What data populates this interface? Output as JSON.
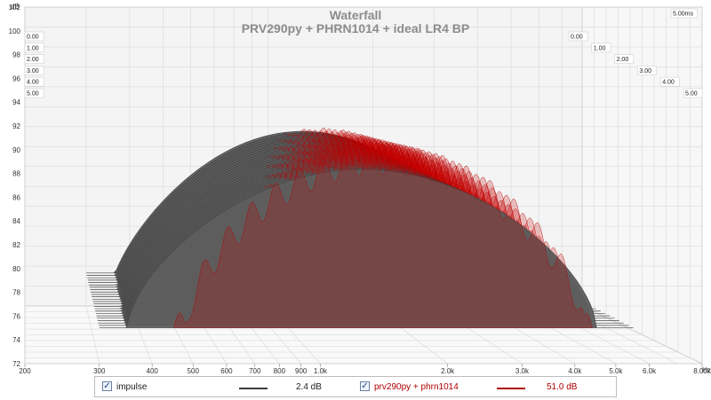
{
  "chart_data": {
    "type": "waterfall",
    "title": "Waterfall",
    "subtitle": "PRV290py + PHRN1014 + ideal LR4 BP",
    "y_axis": {
      "unit": "dB",
      "range": [
        72,
        102
      ],
      "ticks": [
        "72",
        "74",
        "76",
        "78",
        "80",
        "82",
        "84",
        "86",
        "88",
        "90",
        "92",
        "94",
        "96",
        "98",
        "100",
        "102"
      ]
    },
    "x_axis": {
      "unit": "Hz",
      "scale": "log",
      "range": [
        200,
        8000
      ],
      "ticks": [
        {
          "f": 200,
          "label": "200"
        },
        {
          "f": 300,
          "label": "300"
        },
        {
          "f": 400,
          "label": "400"
        },
        {
          "f": 500,
          "label": "500"
        },
        {
          "f": 600,
          "label": "600"
        },
        {
          "f": 700,
          "label": "700"
        },
        {
          "f": 800,
          "label": "800"
        },
        {
          "f": 900,
          "label": "900"
        },
        {
          "f": 1000,
          "label": "1.0k"
        },
        {
          "f": 2000,
          "label": "2.0k"
        },
        {
          "f": 3000,
          "label": "3.0k"
        },
        {
          "f": 4000,
          "label": "4.0k"
        },
        {
          "f": 5000,
          "label": "5.0k"
        },
        {
          "f": 6000,
          "label": "6.0k"
        },
        {
          "f": 8000,
          "label": "8.00k"
        }
      ],
      "unit_label": "Hz"
    },
    "time_axis": {
      "unit": "ms",
      "range": [
        0,
        5
      ],
      "left_labels": [
        "0.00",
        "1.00",
        "2.00",
        "3.00",
        "4.00",
        "5.00"
      ],
      "right_labels": [
        "0.00",
        "1.00",
        "2.00",
        "3.00",
        "4.00",
        "5.00"
      ],
      "end_label": "5.00ms"
    },
    "slices": 24,
    "grid": true,
    "series": [
      {
        "name": "impulse",
        "color": "#3c3c3c",
        "fill": "#5e5e5e",
        "smoothing": "2.4 dB",
        "peak_db": 91.5,
        "band_hz": [
          350,
          4500
        ]
      },
      {
        "name": "prv290py + phrn1014",
        "color": "#b00000",
        "fill": "#c80000",
        "smoothing": "51.0 dB",
        "peak_db": 92.5,
        "band_hz": [
          480,
          4200
        ]
      }
    ]
  },
  "legend": {
    "items": [
      {
        "label": "impulse",
        "checked": true,
        "value": "2.4 dB",
        "color": "#3c3c3c"
      },
      {
        "label": "prv290py + phrn1014",
        "checked": true,
        "value": "51.0 dB",
        "color": "#b00000"
      }
    ]
  }
}
